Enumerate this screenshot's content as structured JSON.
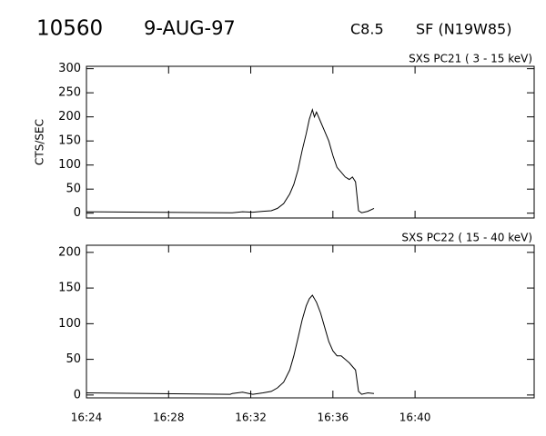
{
  "header": {
    "id": "10560",
    "date": "9-AUG-97",
    "class": "C8.5",
    "location": "SF (N19W85)"
  },
  "chart_data": [
    {
      "type": "line",
      "subtitle": "SXS PC21 (  3 - 15 keV)",
      "ylabel": "CTS/SEC",
      "color": "#000000",
      "x": [
        984,
        991,
        991.1,
        991.6,
        992.1,
        992.6,
        993.0,
        993.3,
        993.6,
        993.9,
        994.1,
        994.3,
        994.5,
        994.7,
        994.85,
        995.0,
        995.1,
        995.2,
        995.4,
        995.6,
        995.8,
        996.0,
        996.2,
        996.4,
        996.6,
        996.8,
        996.95,
        997.1,
        997.25,
        997.4,
        997.7,
        998.0
      ],
      "values": [
        3,
        1,
        1,
        3,
        2,
        4,
        5,
        10,
        20,
        40,
        60,
        90,
        130,
        165,
        195,
        215,
        200,
        210,
        190,
        170,
        150,
        120,
        95,
        85,
        75,
        70,
        75,
        65,
        5,
        1,
        4,
        10
      ],
      "xlim": [
        984,
        1005.8
      ],
      "xticks": [
        984,
        988,
        992,
        996,
        1000
      ],
      "ylim": [
        -10,
        305
      ],
      "yticks": [
        0,
        50,
        100,
        150,
        200,
        250,
        300
      ]
    },
    {
      "type": "line",
      "subtitle": "SXS PC22 ( 15 - 40 keV)",
      "color": "#000000",
      "x": [
        984,
        991,
        991.1,
        991.6,
        992.1,
        992.6,
        993.0,
        993.3,
        993.6,
        993.9,
        994.1,
        994.3,
        994.5,
        994.7,
        994.85,
        995.0,
        995.2,
        995.4,
        995.6,
        995.8,
        996.0,
        996.2,
        996.4,
        996.6,
        996.8,
        996.95,
        997.1,
        997.25,
        997.4,
        997.7,
        998.0
      ],
      "values": [
        3,
        1,
        2,
        4,
        1,
        3,
        5,
        10,
        18,
        35,
        55,
        80,
        105,
        125,
        135,
        140,
        130,
        115,
        95,
        75,
        62,
        55,
        55,
        50,
        45,
        40,
        35,
        5,
        1,
        3,
        2
      ],
      "xlim": [
        984,
        1005.8
      ],
      "xticks": [
        {
          "value": 984,
          "label": "16:24"
        },
        {
          "value": 988,
          "label": "16:28"
        },
        {
          "value": 992,
          "label": "16:32"
        },
        {
          "value": 996,
          "label": "16:36"
        },
        {
          "value": 1000,
          "label": "16:40"
        }
      ],
      "ylim": [
        -4,
        210
      ],
      "yticks": [
        0,
        50,
        100,
        150,
        200
      ]
    }
  ]
}
